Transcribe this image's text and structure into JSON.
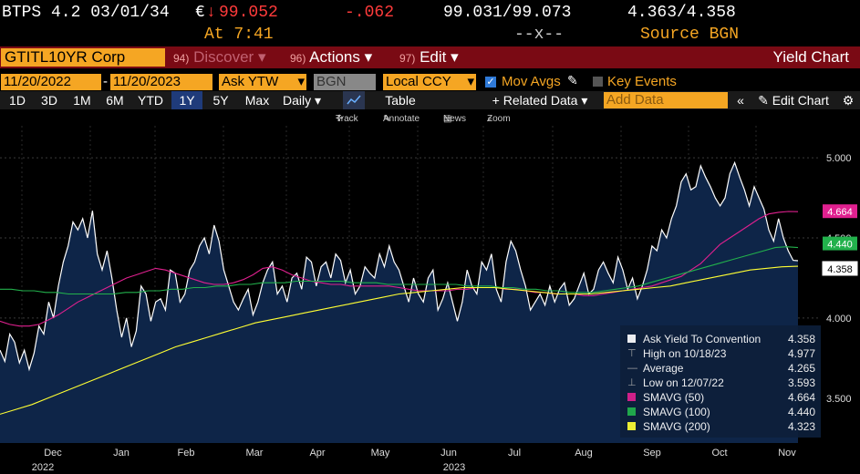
{
  "header": {
    "security": "BTPS 4.2 03/01/34",
    "currency_symbol": "€",
    "arrow": "↓",
    "price": "99.052",
    "change": "-.062",
    "bid_ask": "99.031/99.073",
    "yields": "4.363/4.358",
    "time_label": "At 7:41",
    "size": "--x--",
    "source": "Source BGN"
  },
  "toolbar": {
    "ticker": "GTITL10YR Corp",
    "discover_num": "94)",
    "discover": "Discover",
    "actions_num": "96)",
    "actions": "Actions",
    "edit_num": "97)",
    "edit": "Edit",
    "title": "Yield Chart"
  },
  "controls": {
    "start_date": "11/20/2022",
    "end_date": "11/20/2023",
    "field": "Ask YTW",
    "source": "BGN",
    "currency": "Local CCY",
    "mov_avgs": "Mov Avgs",
    "key_events": "Key Events"
  },
  "periods": [
    "1D",
    "3D",
    "1M",
    "6M",
    "YTD",
    "1Y",
    "5Y",
    "Max"
  ],
  "selected_period": "1Y",
  "tabs": {
    "daily": "Daily",
    "table": "Table",
    "related": "Related Data",
    "add_data_placeholder": "Add Data",
    "edit_chart": "Edit Chart"
  },
  "chart_tools": [
    "Track",
    "Annotate",
    "News",
    "Zoom"
  ],
  "colors": {
    "price": "#ffffff",
    "sma50": "#e0208f",
    "sma100": "#22b14c",
    "sma200": "#ffff33",
    "fill": "#0e2548",
    "accent": "#f5a623"
  },
  "chart_data": {
    "type": "area",
    "ylim": [
      3.22,
      5.2
    ],
    "yticks": [
      3.5,
      4.0,
      4.5,
      5.0
    ],
    "ytick_labels": [
      "3.500",
      "4.000",
      "4.500",
      "5.000"
    ],
    "month_labels": [
      "Dec",
      "Jan",
      "Feb",
      "Mar",
      "Apr",
      "May",
      "Jun",
      "Jul",
      "Aug",
      "Sep",
      "Oct",
      "Nov"
    ],
    "year_labels": [
      "2022",
      "2023"
    ],
    "series": [
      {
        "name": "Ask Yield To Convention",
        "key": "price",
        "values": [
          3.8,
          3.73,
          3.9,
          3.85,
          3.72,
          3.8,
          3.68,
          3.78,
          3.95,
          3.9,
          4.1,
          4.0,
          4.2,
          4.35,
          4.45,
          4.6,
          4.55,
          4.62,
          4.5,
          4.67,
          4.4,
          4.3,
          4.42,
          4.25,
          4.05,
          3.88,
          4.0,
          3.82,
          3.92,
          4.2,
          4.15,
          3.98,
          4.1,
          4.12,
          4.05,
          4.3,
          4.28,
          4.1,
          4.15,
          4.3,
          4.35,
          4.45,
          4.5,
          4.4,
          4.58,
          4.48,
          4.3,
          4.2,
          4.1,
          4.05,
          4.12,
          4.18,
          4.02,
          4.1,
          4.22,
          4.3,
          4.35,
          4.15,
          4.2,
          4.1,
          4.25,
          4.28,
          4.18,
          4.38,
          4.35,
          4.2,
          4.32,
          4.35,
          4.25,
          4.4,
          4.36,
          4.22,
          4.3,
          4.15,
          4.2,
          4.32,
          4.28,
          4.25,
          4.4,
          4.32,
          4.45,
          4.35,
          4.3,
          4.2,
          4.1,
          4.25,
          4.15,
          4.1,
          4.25,
          4.3,
          4.05,
          4.12,
          4.22,
          4.1,
          3.98,
          4.1,
          4.3,
          4.2,
          4.15,
          4.35,
          4.3,
          4.4,
          4.18,
          4.1,
          4.35,
          4.48,
          4.42,
          4.3,
          4.2,
          4.05,
          4.1,
          4.15,
          4.08,
          4.2,
          4.1,
          4.18,
          4.22,
          4.08,
          4.12,
          4.2,
          4.28,
          4.15,
          4.18,
          4.3,
          4.35,
          4.28,
          4.22,
          4.38,
          4.3,
          4.18,
          4.25,
          4.12,
          4.2,
          4.3,
          4.45,
          4.42,
          4.55,
          4.5,
          4.62,
          4.7,
          4.85,
          4.9,
          4.8,
          4.82,
          4.95,
          4.88,
          4.82,
          4.75,
          4.7,
          4.75,
          4.9,
          4.97,
          4.88,
          4.8,
          4.7,
          4.82,
          4.75,
          4.68,
          4.55,
          4.48,
          4.62,
          4.5,
          4.42,
          4.36,
          4.358
        ]
      },
      {
        "name": "SMAVG (50)",
        "key": "sma50",
        "values": [
          3.98,
          3.96,
          3.95,
          3.95,
          3.96,
          3.99,
          4.02,
          4.06,
          4.1,
          4.13,
          4.16,
          4.19,
          4.22,
          4.25,
          4.27,
          4.29,
          4.31,
          4.3,
          4.28,
          4.26,
          4.24,
          4.22,
          4.21,
          4.21,
          4.22,
          4.24,
          4.27,
          4.31,
          4.32,
          4.3,
          4.27,
          4.25,
          4.23,
          4.22,
          4.21,
          4.21,
          4.2,
          4.2,
          4.2,
          4.2,
          4.2,
          4.19,
          4.18,
          4.17,
          4.17,
          4.17,
          4.17,
          4.18,
          4.18,
          4.19,
          4.19,
          4.19,
          4.18,
          4.18,
          4.17,
          4.16,
          4.16,
          4.15,
          4.15,
          4.15,
          4.14,
          4.14,
          4.15,
          4.16,
          4.17,
          4.18,
          4.19,
          4.2,
          4.22,
          4.24,
          4.26,
          4.3,
          4.34,
          4.4,
          4.46,
          4.5,
          4.54,
          4.58,
          4.62,
          4.65,
          4.66,
          4.665,
          4.664
        ]
      },
      {
        "name": "SMAVG (100)",
        "key": "sma100",
        "values": [
          4.18,
          4.18,
          4.17,
          4.17,
          4.16,
          4.16,
          4.15,
          4.15,
          4.15,
          4.15,
          4.15,
          4.16,
          4.16,
          4.17,
          4.17,
          4.18,
          4.18,
          4.19,
          4.19,
          4.2,
          4.2,
          4.21,
          4.21,
          4.22,
          4.22,
          4.22,
          4.23,
          4.23,
          4.23,
          4.23,
          4.23,
          4.22,
          4.22,
          4.22,
          4.21,
          4.21,
          4.21,
          4.21,
          4.21,
          4.21,
          4.21,
          4.2,
          4.2,
          4.2,
          4.19,
          4.19,
          4.18,
          4.18,
          4.17,
          4.17,
          4.16,
          4.16,
          4.16,
          4.17,
          4.18,
          4.19,
          4.2,
          4.22,
          4.24,
          4.26,
          4.28,
          4.3,
          4.32,
          4.34,
          4.36,
          4.38,
          4.4,
          4.42,
          4.44,
          4.445,
          4.44
        ]
      },
      {
        "name": "SMAVG (200)",
        "key": "sma200",
        "values": [
          3.4,
          3.43,
          3.46,
          3.5,
          3.54,
          3.58,
          3.62,
          3.66,
          3.7,
          3.74,
          3.78,
          3.82,
          3.85,
          3.88,
          3.91,
          3.94,
          3.97,
          3.99,
          4.01,
          4.03,
          4.05,
          4.07,
          4.09,
          4.11,
          4.13,
          4.15,
          4.16,
          4.17,
          4.18,
          4.19,
          4.19,
          4.19,
          4.18,
          4.17,
          4.16,
          4.15,
          4.15,
          4.15,
          4.16,
          4.17,
          4.18,
          4.19,
          4.2,
          4.22,
          4.24,
          4.26,
          4.28,
          4.3,
          4.31,
          4.32,
          4.323
        ]
      }
    ],
    "sma_start": {
      "sma50": 0.0,
      "sma100": 0.0,
      "sma200": 0.0
    },
    "current_labels": [
      {
        "key": "sma50",
        "text": "4.664",
        "value": 4.664
      },
      {
        "key": "sma100",
        "text": "4.440",
        "value": 4.44
      },
      {
        "key": "price",
        "text": "4.358",
        "value": 4.358
      }
    ]
  },
  "legend": [
    {
      "label": "Ask Yield To Convention",
      "value": "4.358",
      "marker": "square",
      "color": "#ffffff"
    },
    {
      "label": "High on 10/18/23",
      "value": "4.977",
      "marker": "high",
      "color": "#aaaaaa"
    },
    {
      "label": "Average",
      "value": "4.265",
      "marker": "avg",
      "color": "#aaaaaa"
    },
    {
      "label": "Low on 12/07/22",
      "value": "3.593",
      "marker": "low",
      "color": "#aaaaaa"
    },
    {
      "label": "SMAVG (50)",
      "value": "4.664",
      "marker": "square",
      "color": "#e0208f"
    },
    {
      "label": "SMAVG (100)",
      "value": "4.440",
      "marker": "square",
      "color": "#22b14c"
    },
    {
      "label": "SMAVG (200)",
      "value": "4.323",
      "marker": "square",
      "color": "#ffff33"
    }
  ]
}
